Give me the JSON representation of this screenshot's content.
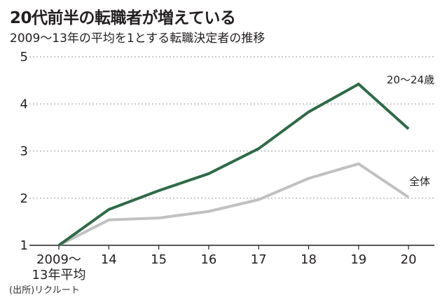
{
  "header": {
    "title": "20代前半の転職者が増えている",
    "subtitle": "2009〜13年の平均を1とする転職決定者の推移"
  },
  "footer": {
    "source": "(出所)リクルート"
  },
  "chart_data": {
    "type": "line",
    "title": "20代前半の転職者が増えている",
    "subtitle": "2009〜13年の平均を1とする転職決定者の推移",
    "xlabel": "",
    "ylabel": "",
    "categories": [
      "2009〜\n13年平均",
      "14",
      "15",
      "16",
      "17",
      "18",
      "19",
      "20"
    ],
    "ylim": [
      1,
      5
    ],
    "yticks": [
      1,
      2,
      3,
      4,
      5
    ],
    "grid": "horizontal-dashed",
    "legend": "direct-labels",
    "series": [
      {
        "name": "20〜24歳",
        "color": "#2e6b46",
        "values": [
          1.0,
          1.76,
          2.16,
          2.52,
          3.05,
          3.83,
          4.42,
          3.47
        ]
      },
      {
        "name": "全体",
        "color": "#c1c1c1",
        "values": [
          1.0,
          1.54,
          1.58,
          1.72,
          1.97,
          2.42,
          2.73,
          2.02
        ]
      }
    ]
  }
}
